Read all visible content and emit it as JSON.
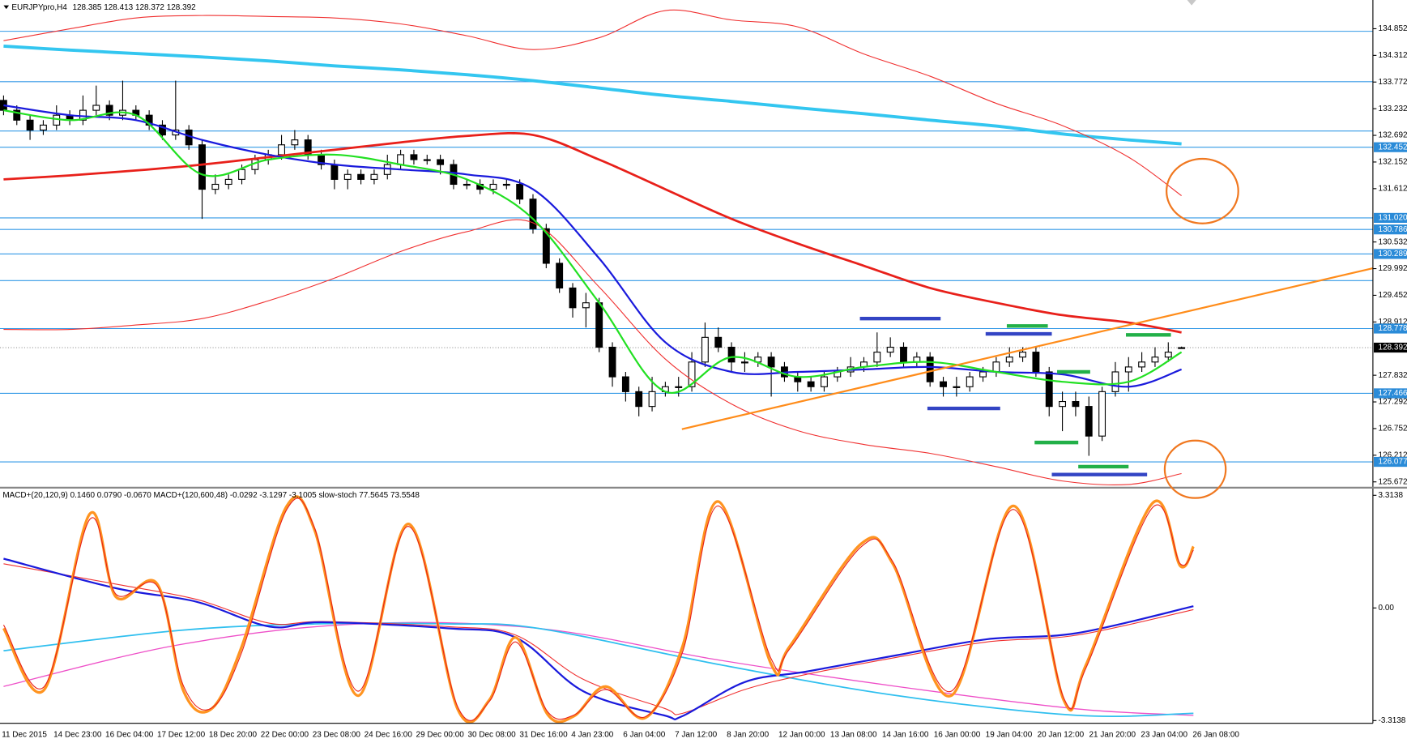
{
  "chart_data": [
    {
      "type": "candlestick",
      "title": "EURJPYpro,H4",
      "subtitle": "128.385 128.413 128.372 128.392",
      "x_labels": [
        "11 Dec 2015",
        "14 Dec 23:00",
        "16 Dec 04:00",
        "17 Dec 12:00",
        "18 Dec 20:00",
        "22 Dec 00:00",
        "23 Dec 08:00",
        "24 Dec 16:00",
        "29 Dec 00:00",
        "30 Dec 08:00",
        "31 Dec 16:00",
        "4 Jan 23:00",
        "6 Jan 04:00",
        "7 Jan 12:00",
        "8 Jan 20:00",
        "12 Jan 00:00",
        "13 Jan 08:00",
        "14 Jan 16:00",
        "16 Jan 00:00",
        "19 Jan 04:00",
        "20 Jan 12:00",
        "21 Jan 20:00",
        "23 Jan 04:00",
        "26 Jan 08:00"
      ],
      "xlim": [
        -0.27,
        103.46
      ],
      "ylim": [
        125.563,
        135.434
      ],
      "yticks": [
        134.852,
        134.312,
        133.772,
        133.232,
        132.692,
        132.152,
        131.612,
        130.532,
        129.992,
        129.452,
        128.912,
        127.832,
        127.292,
        126.752,
        126.212,
        125.672
      ],
      "open": [
        133.4,
        133.2,
        133.0,
        132.8,
        132.9,
        133.1,
        133.0,
        133.2,
        133.3,
        133.1,
        133.2,
        133.1,
        132.9,
        132.7,
        132.8,
        132.5,
        131.6,
        131.7,
        131.8,
        132.0,
        132.2,
        132.3,
        132.5,
        132.6,
        132.3,
        132.1,
        131.8,
        131.9,
        131.8,
        131.9,
        132.1,
        132.3,
        132.2,
        132.2,
        132.1,
        131.7,
        131.7,
        131.6,
        131.7,
        131.7,
        131.4,
        130.8,
        130.1,
        129.6,
        129.2,
        129.3,
        128.4,
        127.8,
        127.5,
        127.2,
        127.5,
        127.6,
        127.6,
        128.1,
        128.6,
        128.4,
        128.1,
        128.1,
        128.2,
        128.0,
        127.8,
        127.7,
        127.6,
        127.8,
        127.9,
        128.0,
        128.1,
        128.3,
        128.4,
        128.1,
        128.2,
        127.7,
        127.6,
        127.6,
        127.8,
        127.9,
        128.1,
        128.2,
        128.3,
        127.9,
        127.2,
        127.3,
        127.2,
        126.6,
        127.5,
        127.9,
        128.0,
        128.1,
        128.2,
        128.385
      ],
      "high": [
        133.5,
        133.3,
        133.1,
        133.0,
        133.3,
        133.2,
        133.5,
        133.7,
        133.4,
        133.8,
        133.3,
        133.2,
        133.0,
        133.8,
        132.9,
        132.6,
        131.9,
        131.9,
        132.1,
        132.3,
        132.4,
        132.7,
        132.8,
        132.7,
        132.4,
        132.2,
        132.0,
        132.0,
        132.0,
        132.3,
        132.4,
        132.4,
        132.3,
        132.3,
        132.2,
        131.8,
        131.8,
        131.8,
        131.8,
        131.8,
        131.5,
        130.9,
        130.2,
        129.7,
        129.5,
        129.4,
        128.5,
        127.9,
        127.6,
        127.8,
        127.7,
        127.8,
        128.3,
        128.9,
        128.8,
        128.5,
        128.3,
        128.3,
        128.3,
        128.1,
        127.9,
        127.8,
        127.9,
        128.0,
        128.2,
        128.2,
        128.7,
        128.6,
        128.5,
        128.3,
        128.3,
        127.8,
        127.8,
        127.9,
        128.0,
        128.2,
        128.4,
        128.4,
        128.4,
        128.0,
        127.5,
        127.5,
        127.4,
        127.6,
        128.1,
        128.2,
        128.3,
        128.4,
        128.5,
        128.413
      ],
      "low": [
        133.1,
        132.9,
        132.6,
        132.7,
        132.8,
        132.9,
        132.9,
        133.1,
        133.0,
        133.0,
        133.0,
        132.8,
        132.6,
        132.6,
        132.4,
        131.0,
        131.5,
        131.6,
        131.7,
        131.9,
        132.1,
        132.2,
        132.4,
        132.2,
        132.0,
        131.6,
        131.6,
        131.7,
        131.7,
        131.8,
        132.0,
        132.1,
        132.1,
        131.9,
        131.6,
        131.6,
        131.5,
        131.5,
        131.6,
        131.3,
        130.7,
        130.0,
        129.5,
        129.0,
        128.8,
        128.3,
        127.6,
        127.3,
        127.0,
        127.1,
        127.4,
        127.4,
        127.5,
        128.0,
        128.3,
        127.9,
        127.9,
        128.0,
        127.4,
        127.7,
        127.5,
        127.5,
        127.5,
        127.7,
        127.8,
        127.9,
        128.0,
        128.2,
        128.0,
        128.0,
        127.6,
        127.4,
        127.4,
        127.5,
        127.7,
        127.8,
        128.0,
        128.1,
        127.8,
        127.0,
        126.7,
        127.0,
        126.2,
        126.5,
        127.4,
        127.5,
        127.9,
        128.0,
        128.1,
        128.372
      ],
      "close": [
        133.2,
        133.0,
        132.8,
        132.9,
        133.1,
        133.0,
        133.2,
        133.3,
        133.1,
        133.2,
        133.1,
        132.9,
        132.7,
        132.8,
        132.5,
        131.6,
        131.7,
        131.8,
        132.0,
        132.2,
        132.3,
        132.5,
        132.6,
        132.3,
        132.1,
        131.8,
        131.9,
        131.8,
        131.9,
        132.1,
        132.3,
        132.2,
        132.2,
        132.1,
        131.7,
        131.7,
        131.6,
        131.7,
        131.7,
        131.4,
        130.8,
        130.1,
        129.6,
        129.2,
        129.3,
        128.4,
        127.8,
        127.5,
        127.2,
        127.5,
        127.6,
        127.6,
        128.1,
        128.6,
        128.4,
        128.1,
        128.1,
        128.2,
        128.0,
        127.8,
        127.7,
        127.6,
        127.8,
        127.9,
        128.0,
        128.1,
        128.3,
        128.4,
        128.1,
        128.2,
        127.7,
        127.6,
        127.6,
        127.8,
        127.9,
        128.1,
        128.2,
        128.3,
        127.9,
        127.2,
        127.3,
        127.2,
        126.6,
        127.5,
        127.9,
        128.0,
        128.1,
        128.2,
        128.3,
        128.392
      ],
      "hlines": [
        134.8,
        133.78,
        132.78,
        129.75
      ],
      "hline_color": "#3399e6",
      "levels": [
        132.452,
        {
          "value": 131.02,
          "label": "131.020"
        },
        130.786,
        130.289,
        128.778,
        127.466,
        126.077
      ],
      "level_color": "#2a8bd8",
      "current": 128.392,
      "overlays": [
        {
          "color": "#33c6f0",
          "line_width": 3.5,
          "x": [
            0,
            5,
            10,
            15,
            20,
            25,
            30,
            35,
            40,
            45,
            50,
            55,
            60,
            65,
            70,
            75,
            80,
            85,
            89
          ],
          "values": [
            134.5,
            134.42,
            134.35,
            134.28,
            134.2,
            134.1,
            134.02,
            133.92,
            133.8,
            133.65,
            133.5,
            133.38,
            133.25,
            133.13,
            133.0,
            132.88,
            132.72,
            132.6,
            132.52
          ]
        },
        {
          "color": "#e8201a",
          "line_width": 2.5,
          "x": [
            0,
            5,
            10,
            15,
            20,
            25,
            30,
            35,
            40,
            45,
            50,
            55,
            60,
            65,
            70,
            75,
            80,
            85,
            89
          ],
          "values": [
            131.8,
            131.88,
            131.98,
            132.1,
            132.25,
            132.4,
            132.55,
            132.68,
            132.7,
            132.2,
            131.6,
            131.0,
            130.5,
            130.05,
            129.6,
            129.3,
            129.05,
            128.9,
            128.7
          ]
        },
        {
          "color": "#f03030",
          "line_width": 1,
          "x": [
            0,
            5,
            10,
            15,
            20,
            25,
            30,
            35,
            40,
            45,
            50,
            55,
            60,
            65,
            70,
            75,
            80,
            85,
            89
          ],
          "values": [
            134.61,
            134.85,
            135.07,
            135.12,
            135.1,
            135.07,
            134.95,
            134.71,
            134.43,
            134.67,
            135.22,
            135.03,
            134.89,
            134.34,
            133.89,
            133.34,
            132.89,
            132.25,
            131.47
          ]
        },
        {
          "color": "#f03030",
          "line_width": 1,
          "x": [
            0,
            5,
            10,
            15,
            20,
            25,
            30,
            35,
            40,
            45,
            50,
            55,
            60,
            65,
            70,
            75,
            80,
            85,
            89
          ],
          "values": [
            128.76,
            128.76,
            128.85,
            128.98,
            129.34,
            129.8,
            130.34,
            130.74,
            130.92,
            129.62,
            128.16,
            127.25,
            126.71,
            126.43,
            126.25,
            125.98,
            125.69,
            125.62,
            125.84
          ]
        },
        {
          "color": "#1a1adc",
          "line_width": 2,
          "x": [
            0,
            5,
            10,
            15,
            20,
            25,
            30,
            35,
            40,
            45,
            50,
            55,
            60,
            65,
            70,
            75,
            80,
            85,
            89
          ],
          "values": [
            133.3,
            133.1,
            133.0,
            132.6,
            132.3,
            132.1,
            132.0,
            131.9,
            131.6,
            130.2,
            128.5,
            127.9,
            127.9,
            127.95,
            128.0,
            127.9,
            127.85,
            127.6,
            127.95
          ]
        },
        {
          "color": "#22e022",
          "line_width": 2,
          "x": [
            0,
            5,
            10,
            15,
            20,
            25,
            30,
            35,
            40,
            45,
            50,
            55,
            60,
            65,
            70,
            75,
            80,
            85,
            89
          ],
          "values": [
            133.2,
            133.0,
            133.1,
            131.9,
            132.2,
            132.3,
            132.1,
            131.8,
            131.0,
            129.3,
            127.5,
            128.2,
            127.8,
            128.0,
            128.1,
            127.9,
            127.7,
            127.7,
            128.3
          ]
        }
      ],
      "trendline": {
        "color": "#ff8c1a",
        "x": [
          51.25,
          103.46
        ],
        "values": [
          126.74,
          130.0
        ]
      },
      "segments": [
        {
          "color": "#3344c4",
          "x": [
            64.7,
            70.8
          ],
          "value": 128.98
        },
        {
          "color": "#3344c4",
          "x": [
            74.2,
            79.2
          ],
          "value": 128.67
        },
        {
          "color": "#3344c4",
          "x": [
            69.8,
            75.3
          ],
          "value": 127.16
        },
        {
          "color": "#3344c4",
          "x": [
            79.2,
            86.4
          ],
          "value": 125.82
        },
        {
          "color": "#22b048",
          "x": [
            75.8,
            78.9
          ],
          "value": 128.83
        },
        {
          "color": "#22b048",
          "x": [
            79.6,
            82.1
          ],
          "value": 127.9
        },
        {
          "color": "#22b048",
          "x": [
            77.9,
            81.2
          ],
          "value": 126.47
        },
        {
          "color": "#22b048",
          "x": [
            81.2,
            85.0
          ],
          "value": 125.98
        },
        {
          "color": "#22b048",
          "x": [
            84.8,
            88.2
          ],
          "value": 128.65
        }
      ]
    },
    {
      "type": "line",
      "title": "MACD+(20,120,9) 0.1460 0.0790 -0.0670  MACD+(120,600,48) -0.0292 -3.1297 -3.1005  slow-stoch 77.5645 73.5548",
      "xlim": [
        -0.27,
        103.46
      ],
      "ylim": [
        -3.366,
        3.498
      ],
      "yticks": [
        3.3138,
        {
          "value": 0,
          "label": "0.00"
        },
        -3.3138
      ],
      "series": [
        {
          "color": "#ee4fc8",
          "line_width": 1.2,
          "x": [
            0,
            13.3,
            26.8,
            40.4,
            54,
            67.5,
            81.1,
            89.9
          ],
          "values": [
            -2.31,
            -1.08,
            -0.47,
            -0.6,
            -1.53,
            -2.31,
            -2.97,
            -3.16
          ]
        },
        {
          "color": "#2fbfef",
          "line_width": 1.6,
          "x": [
            0,
            13.3,
            23.5,
            33.6,
            40.4,
            54,
            67.5,
            81.1,
            89.9
          ],
          "values": [
            -1.26,
            -0.66,
            -0.47,
            -0.47,
            -0.6,
            -1.66,
            -2.58,
            -3.16,
            -3.1
          ]
        },
        {
          "color": "#f03030",
          "line_width": 1,
          "x": [
            0,
            8.5,
            14.6,
            20.1,
            24.1,
            33.6,
            38.7,
            43.8,
            49.9,
            51.3,
            56,
            60.7,
            67.5,
            74.3,
            81.1,
            89.9
          ],
          "values": [
            1.3,
            0.7,
            0.25,
            -0.45,
            -0.4,
            -0.55,
            -0.8,
            -2.1,
            -2.95,
            -3.1,
            -2.4,
            -1.95,
            -1.45,
            -1.0,
            -0.8,
            -0.05
          ]
        },
        {
          "color": "#1a1adc",
          "line_width": 2,
          "x": [
            0,
            8.5,
            14.6,
            20.1,
            24.1,
            33.6,
            38.7,
            43.8,
            49.9,
            51.3,
            56,
            60.7,
            67.5,
            74.3,
            81.1,
            89.9
          ],
          "values": [
            1.45,
            0.58,
            0.18,
            -0.55,
            -0.42,
            -0.6,
            -0.87,
            -2.45,
            -3.16,
            -3.18,
            -2.18,
            -1.87,
            -1.39,
            -0.92,
            -0.74,
            0.05
          ]
        },
        {
          "color": "#ff9420",
          "line_width": 3,
          "x": [
            0,
            3.1,
            6.5,
            8.5,
            11.6,
            13.6,
            15.7,
            18,
            21.4,
            23.5,
            26.8,
            30.6,
            34.3,
            36.7,
            38.7,
            41.1,
            43.1,
            45.5,
            48.5,
            51.3,
            54,
            58,
            59.4,
            64.8,
            67.2,
            71.6,
            76.3,
            80.1,
            81.8,
            86.8,
            88.9,
            89.9
          ],
          "values": [
            -0.6,
            -2.39,
            2.76,
            0.32,
            0.71,
            -2.45,
            -2.97,
            -1.13,
            3.0,
            2.29,
            -2.58,
            2.47,
            -2.97,
            -2.71,
            -0.87,
            -3.13,
            -3.18,
            -2.31,
            -3.23,
            -1.13,
            3.13,
            -1.66,
            -1.13,
            1.89,
            1.29,
            -2.58,
            3.0,
            -2.71,
            -1.66,
            3.08,
            1.24,
            1.81
          ]
        },
        {
          "color": "#e8201a",
          "line_width": 1,
          "x": [
            0,
            3.1,
            6.5,
            8.5,
            11.6,
            13.6,
            15.7,
            18,
            21.4,
            23.5,
            26.8,
            30.6,
            34.3,
            36.7,
            38.7,
            41.1,
            43.1,
            45.5,
            48.5,
            51.3,
            54,
            58,
            59.4,
            64.8,
            67.2,
            71.6,
            76.3,
            80.1,
            81.8,
            86.8,
            88.9,
            89.9
          ],
          "values": [
            -0.5,
            -2.3,
            2.6,
            0.4,
            0.65,
            -2.3,
            -2.95,
            -1.3,
            2.9,
            2.35,
            -2.45,
            2.4,
            -2.9,
            -2.75,
            -1.0,
            -3.05,
            -3.15,
            -2.4,
            -3.2,
            -1.3,
            3.0,
            -1.5,
            -1.2,
            1.8,
            1.35,
            -2.45,
            2.9,
            -2.65,
            -1.75,
            2.95,
            1.3,
            1.7
          ]
        }
      ]
    }
  ]
}
